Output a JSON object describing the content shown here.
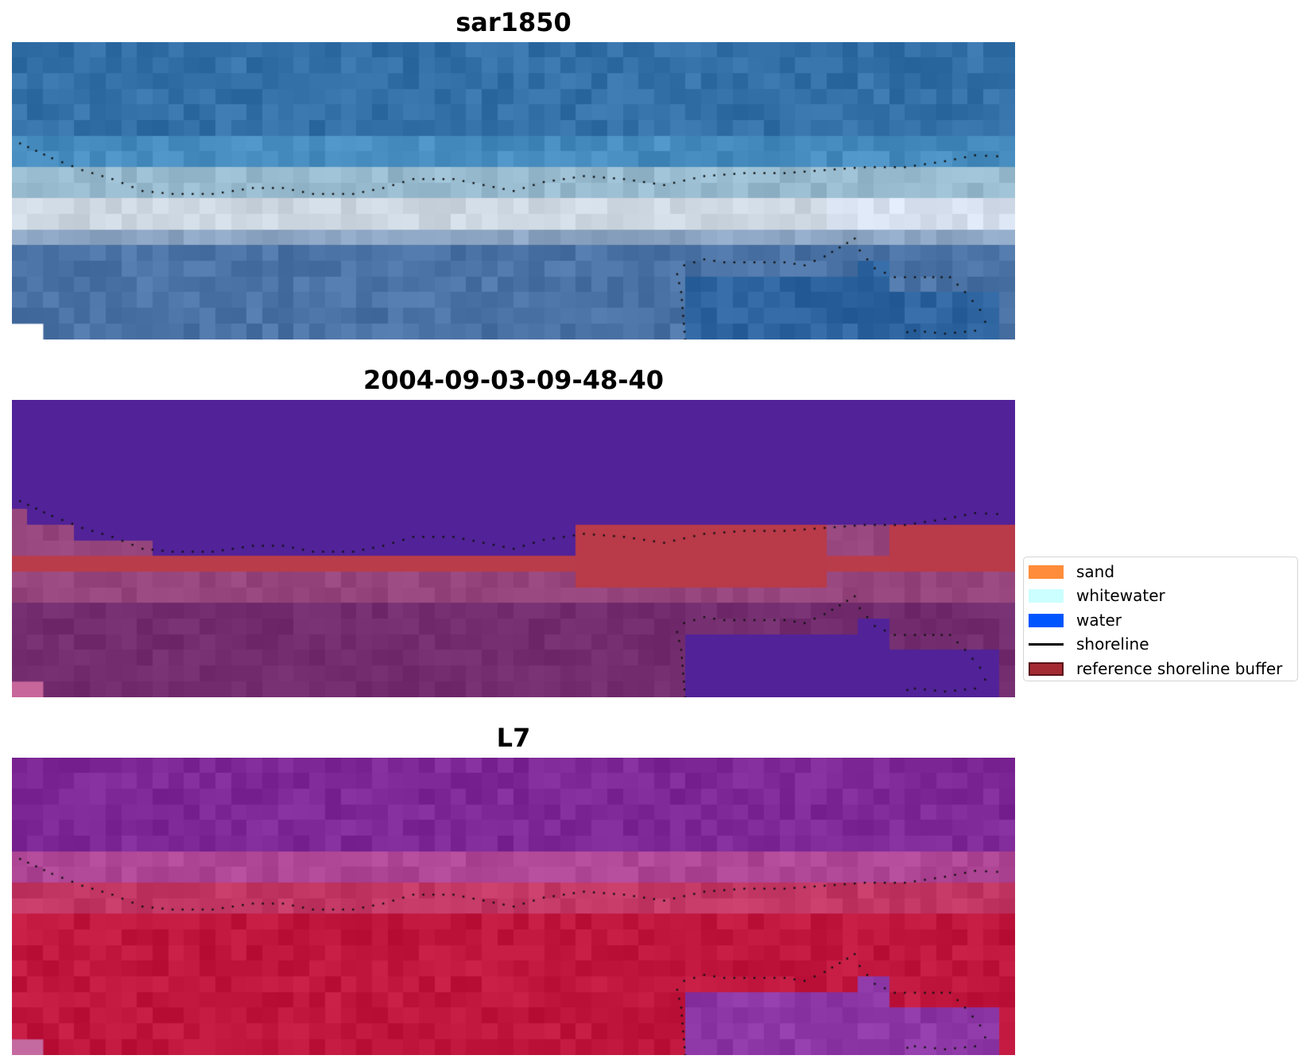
{
  "panels": [
    {
      "title": "sar1850",
      "palette": "rgb"
    },
    {
      "title": "2004-09-03-09-48-40",
      "palette": "classified"
    },
    {
      "title": "L7",
      "palette": "index"
    }
  ],
  "legend": {
    "items": [
      {
        "label": "sand",
        "color": "#ff8c3a",
        "kind": "patch"
      },
      {
        "label": "whitewater",
        "color": "#ccffff",
        "kind": "patch"
      },
      {
        "label": "water",
        "color": "#0055ff",
        "kind": "patch"
      },
      {
        "label": "shoreline",
        "color": "#000000",
        "kind": "line"
      },
      {
        "label": "reference shoreline buffer",
        "color": "#a32a33",
        "kind": "patch"
      }
    ]
  },
  "colors": {
    "ocean_blue": "#3a76ab",
    "deep_purple": "#52229a",
    "buffer_red": "#b93a4a",
    "index_purple": "#7e2c9c",
    "index_red": "#c01a45"
  }
}
